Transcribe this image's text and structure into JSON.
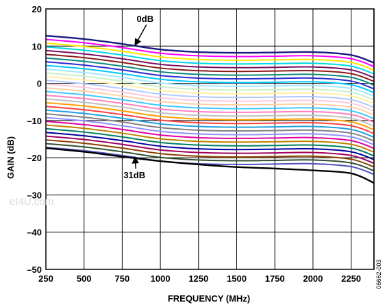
{
  "chart_data": {
    "type": "line",
    "title": "",
    "xlabel": "FREQUENCY (MHz)",
    "ylabel": "GAIN (dB)",
    "xlim": [
      250,
      2400
    ],
    "ylim": [
      -50,
      20
    ],
    "xticks": [
      250,
      500,
      750,
      1000,
      1250,
      1500,
      1750,
      2000,
      2250
    ],
    "yticks": [
      20,
      10,
      0,
      -10,
      -20,
      -30,
      -40,
      -50
    ],
    "xtick_labels": [
      "250",
      "500",
      "750",
      "1000",
      "1250",
      "1500",
      "1750",
      "2000",
      "2250"
    ],
    "ytick_labels": [
      "20",
      "10",
      "0",
      "–10",
      "–20",
      "–30",
      "–40",
      "–50"
    ],
    "grid": true,
    "x": [
      250,
      500,
      750,
      1000,
      1250,
      1500,
      1750,
      2000,
      2250,
      2400
    ],
    "series": [
      {
        "values": [
          12.8,
          11.9,
          10.6,
          9.1,
          8.4,
          8.2,
          8.3,
          8.4,
          7.6,
          5.5
        ],
        "color": "#1a1a80"
      },
      {
        "values": [
          11.8,
          10.9,
          9.6,
          8.1,
          7.4,
          7.2,
          7.3,
          7.4,
          6.6,
          4.5
        ],
        "color": "#ff00ff"
      },
      {
        "values": [
          10.8,
          9.9,
          8.6,
          7.1,
          6.4,
          6.2,
          6.3,
          6.4,
          5.6,
          3.5
        ],
        "color": "#ffe600"
      },
      {
        "values": [
          9.8,
          8.9,
          7.6,
          6.1,
          5.4,
          5.2,
          5.3,
          5.4,
          4.6,
          2.5
        ],
        "color": "#00d8e8"
      },
      {
        "values": [
          8.8,
          7.9,
          6.6,
          5.1,
          4.4,
          4.2,
          4.3,
          4.4,
          3.6,
          1.5
        ],
        "color": "#7a1060"
      },
      {
        "values": [
          7.8,
          6.9,
          5.6,
          4.1,
          3.4,
          3.2,
          3.3,
          3.4,
          2.6,
          0.5
        ],
        "color": "#8a1c1c"
      },
      {
        "values": [
          6.8,
          5.9,
          4.6,
          3.1,
          2.4,
          2.2,
          2.3,
          2.4,
          1.6,
          -0.5
        ],
        "color": "#0a8a7a"
      },
      {
        "values": [
          5.8,
          4.9,
          3.6,
          2.1,
          1.4,
          1.2,
          1.3,
          1.4,
          0.6,
          -1.5
        ],
        "color": "#2a2ad0"
      },
      {
        "values": [
          4.8,
          3.9,
          2.6,
          1.1,
          0.4,
          0.2,
          0.3,
          0.4,
          -0.4,
          -2.5
        ],
        "color": "#00c8ff"
      },
      {
        "values": [
          3.8,
          2.9,
          1.6,
          0.1,
          -0.6,
          -0.8,
          -0.7,
          -0.6,
          -1.4,
          -3.5
        ],
        "color": "#a0e8ff"
      },
      {
        "values": [
          2.8,
          1.9,
          0.6,
          -0.9,
          -1.6,
          -1.8,
          -1.7,
          -1.6,
          -2.4,
          -4.5
        ],
        "color": "#c8f0c8"
      },
      {
        "values": [
          1.8,
          0.9,
          -0.4,
          -1.9,
          -2.6,
          -2.8,
          -2.7,
          -2.6,
          -3.4,
          -5.5
        ],
        "color": "#fff0a0"
      },
      {
        "values": [
          0.8,
          -0.1,
          -1.4,
          -2.9,
          -3.6,
          -3.8,
          -3.7,
          -3.6,
          -4.4,
          -6.5
        ],
        "color": "#b0c8ff"
      },
      {
        "values": [
          -0.2,
          -1.1,
          -2.4,
          -3.9,
          -4.6,
          -4.8,
          -4.7,
          -4.6,
          -5.4,
          -7.5
        ],
        "color": "#ffc8e0"
      },
      {
        "values": [
          -1.2,
          -2.1,
          -3.4,
          -4.9,
          -5.6,
          -5.8,
          -5.7,
          -5.6,
          -6.4,
          -8.5
        ],
        "color": "#ffd0a0"
      },
      {
        "values": [
          -2.2,
          -3.1,
          -4.4,
          -5.9,
          -6.6,
          -6.8,
          -6.7,
          -6.6,
          -7.4,
          -9.5
        ],
        "color": "#40c8ff"
      },
      {
        "values": [
          -3.2,
          -4.1,
          -5.4,
          -6.9,
          -7.6,
          -7.8,
          -7.7,
          -7.6,
          -8.4,
          -10.5
        ],
        "color": "#ff80c0"
      },
      {
        "values": [
          -4.2,
          -5.1,
          -6.4,
          -7.9,
          -8.6,
          -8.8,
          -8.7,
          -8.6,
          -9.4,
          -11.5
        ],
        "color": "#c0c0c0"
      },
      {
        "values": [
          -5.2,
          -6.1,
          -7.4,
          -8.9,
          -9.6,
          -9.8,
          -9.7,
          -9.6,
          -10.4,
          -12.5
        ],
        "color": "#ffa000"
      },
      {
        "values": [
          -6.2,
          -7.1,
          -8.4,
          -9.9,
          -10.6,
          -10.8,
          -10.7,
          -10.6,
          -11.4,
          -13.5
        ],
        "color": "#ff4040"
      },
      {
        "values": [
          -7.2,
          -8.1,
          -9.4,
          -10.9,
          -11.6,
          -11.8,
          -11.7,
          -11.6,
          -12.4,
          -14.5
        ],
        "color": "#20a0e0"
      },
      {
        "values": [
          -8.2,
          -9.1,
          -10.4,
          -11.9,
          -12.6,
          -12.8,
          -12.7,
          -12.6,
          -13.4,
          -15.5
        ],
        "color": "#808080"
      },
      {
        "values": [
          -9.2,
          -10.1,
          -11.4,
          -12.9,
          -13.6,
          -13.8,
          -13.7,
          -13.6,
          -14.4,
          -16.5
        ],
        "color": "#9090ff"
      },
      {
        "values": [
          -10.2,
          -11.1,
          -12.4,
          -13.9,
          -14.6,
          -14.8,
          -14.7,
          -14.6,
          -15.4,
          -17.5
        ],
        "color": "#e000a0"
      },
      {
        "values": [
          -11.2,
          -12.1,
          -13.4,
          -14.9,
          -15.6,
          -15.8,
          -15.7,
          -15.6,
          -16.4,
          -18.5
        ],
        "color": "#c08000"
      },
      {
        "values": [
          -12.2,
          -13.1,
          -14.4,
          -15.9,
          -16.6,
          -16.8,
          -16.7,
          -16.6,
          -17.4,
          -19.5
        ],
        "color": "#008060"
      },
      {
        "values": [
          -13.2,
          -14.1,
          -15.4,
          -16.9,
          -17.6,
          -17.8,
          -17.7,
          -17.6,
          -18.4,
          -20.5
        ],
        "color": "#0000a0"
      },
      {
        "values": [
          -14.2,
          -15.1,
          -16.4,
          -17.9,
          -18.6,
          -18.8,
          -18.7,
          -18.6,
          -19.4,
          -21.5
        ],
        "color": "#a00060"
      },
      {
        "values": [
          -15.2,
          -16.1,
          -17.4,
          -18.9,
          -19.6,
          -19.8,
          -19.7,
          -19.6,
          -20.4,
          -22.5
        ],
        "color": "#8a4000"
      },
      {
        "values": [
          -16.2,
          -17.1,
          -18.4,
          -19.9,
          -20.6,
          -20.8,
          -20.7,
          -20.6,
          -21.4,
          -23.5
        ],
        "color": "#305030"
      },
      {
        "values": [
          -17.2,
          -18.1,
          -19.4,
          -20.9,
          -21.6,
          -21.8,
          -21.7,
          -21.6,
          -22.4,
          -24.5
        ],
        "color": "#5050c0"
      },
      {
        "values": [
          -17.4,
          -18.4,
          -19.7,
          -20.9,
          -21.8,
          -22.5,
          -22.9,
          -23.4,
          -24.2,
          -26.8
        ],
        "color": "#000000"
      }
    ],
    "annotations": [
      {
        "text": "0dB",
        "x": 900,
        "y": 16.5,
        "arrow_to": [
          820,
          10.2
        ]
      },
      {
        "text": "31dB",
        "x": 830,
        "y": -25.5,
        "arrow_to": [
          820,
          -19.8
        ]
      }
    ],
    "figure_id": "06662-003",
    "watermark": "et4U.com"
  }
}
